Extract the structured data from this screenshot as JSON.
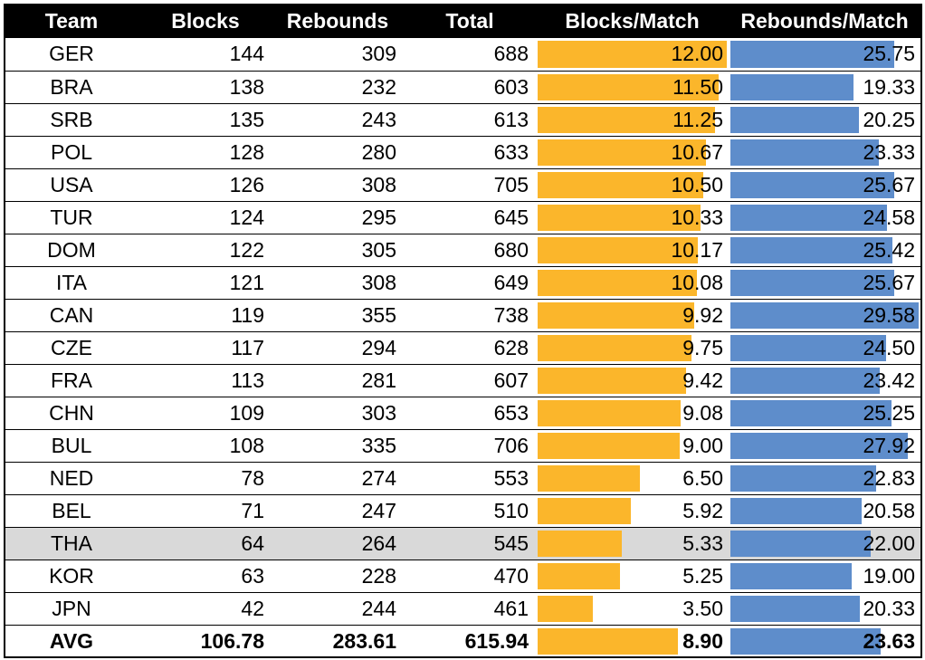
{
  "colors": {
    "blocks_bar": "#fbb62b",
    "rebounds_bar": "#5e8dcb",
    "header_bg": "#000000",
    "highlight_row": "#d9d9d9"
  },
  "chart_data": {
    "type": "table",
    "columns": [
      "Team",
      "Blocks",
      "Rebounds",
      "Total",
      "Blocks/Match",
      "Rebounds/Match"
    ],
    "bar_columns": {
      "Blocks/Match": {
        "max": 12.0
      },
      "Rebounds/Match": {
        "max": 29.58
      }
    },
    "highlighted_team": "THA",
    "rows": [
      {
        "team": "GER",
        "blocks": "144",
        "rebounds": "309",
        "total": "688",
        "blocks_per_match": "12.00",
        "rebounds_per_match": "25.75"
      },
      {
        "team": "BRA",
        "blocks": "138",
        "rebounds": "232",
        "total": "603",
        "blocks_per_match": "11.50",
        "rebounds_per_match": "19.33"
      },
      {
        "team": "SRB",
        "blocks": "135",
        "rebounds": "243",
        "total": "613",
        "blocks_per_match": "11.25",
        "rebounds_per_match": "20.25"
      },
      {
        "team": "POL",
        "blocks": "128",
        "rebounds": "280",
        "total": "633",
        "blocks_per_match": "10.67",
        "rebounds_per_match": "23.33"
      },
      {
        "team": "USA",
        "blocks": "126",
        "rebounds": "308",
        "total": "705",
        "blocks_per_match": "10.50",
        "rebounds_per_match": "25.67"
      },
      {
        "team": "TUR",
        "blocks": "124",
        "rebounds": "295",
        "total": "645",
        "blocks_per_match": "10.33",
        "rebounds_per_match": "24.58"
      },
      {
        "team": "DOM",
        "blocks": "122",
        "rebounds": "305",
        "total": "680",
        "blocks_per_match": "10.17",
        "rebounds_per_match": "25.42"
      },
      {
        "team": "ITA",
        "blocks": "121",
        "rebounds": "308",
        "total": "649",
        "blocks_per_match": "10.08",
        "rebounds_per_match": "25.67"
      },
      {
        "team": "CAN",
        "blocks": "119",
        "rebounds": "355",
        "total": "738",
        "blocks_per_match": "9.92",
        "rebounds_per_match": "29.58"
      },
      {
        "team": "CZE",
        "blocks": "117",
        "rebounds": "294",
        "total": "628",
        "blocks_per_match": "9.75",
        "rebounds_per_match": "24.50"
      },
      {
        "team": "FRA",
        "blocks": "113",
        "rebounds": "281",
        "total": "607",
        "blocks_per_match": "9.42",
        "rebounds_per_match": "23.42"
      },
      {
        "team": "CHN",
        "blocks": "109",
        "rebounds": "303",
        "total": "653",
        "blocks_per_match": "9.08",
        "rebounds_per_match": "25.25"
      },
      {
        "team": "BUL",
        "blocks": "108",
        "rebounds": "335",
        "total": "706",
        "blocks_per_match": "9.00",
        "rebounds_per_match": "27.92"
      },
      {
        "team": "NED",
        "blocks": "78",
        "rebounds": "274",
        "total": "553",
        "blocks_per_match": "6.50",
        "rebounds_per_match": "22.83"
      },
      {
        "team": "BEL",
        "blocks": "71",
        "rebounds": "247",
        "total": "510",
        "blocks_per_match": "5.92",
        "rebounds_per_match": "20.58"
      },
      {
        "team": "THA",
        "blocks": "64",
        "rebounds": "264",
        "total": "545",
        "blocks_per_match": "5.33",
        "rebounds_per_match": "22.00"
      },
      {
        "team": "KOR",
        "blocks": "63",
        "rebounds": "228",
        "total": "470",
        "blocks_per_match": "5.25",
        "rebounds_per_match": "19.00"
      },
      {
        "team": "JPN",
        "blocks": "42",
        "rebounds": "244",
        "total": "461",
        "blocks_per_match": "3.50",
        "rebounds_per_match": "20.33"
      }
    ],
    "average": {
      "team": "AVG",
      "blocks": "106.78",
      "rebounds": "283.61",
      "total": "615.94",
      "blocks_per_match": "8.90",
      "rebounds_per_match": "23.63"
    }
  }
}
